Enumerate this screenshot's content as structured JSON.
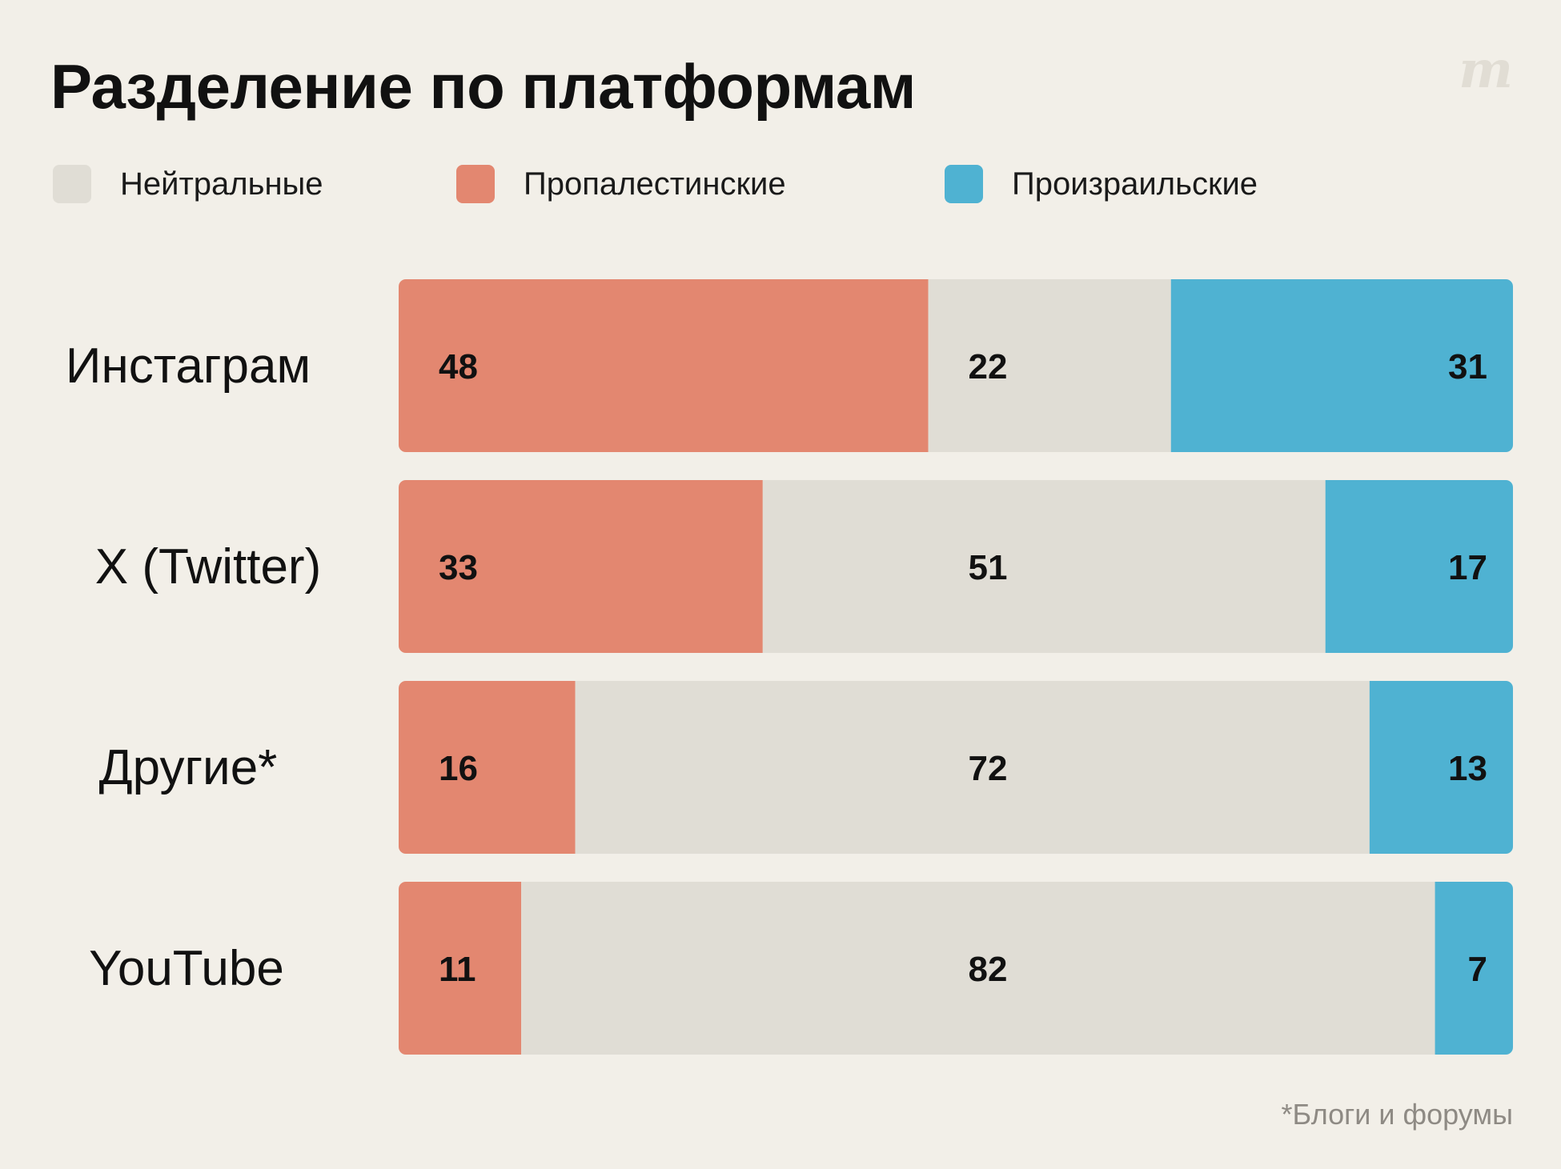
{
  "title": "Разделение по платформам",
  "logo_text": "m",
  "legend": [
    {
      "label": "Нейтральные",
      "color": "#e0ddd5"
    },
    {
      "label": "Пропалестинские",
      "color": "#e38770"
    },
    {
      "label": "Произраильские",
      "color": "#4fb2d2"
    }
  ],
  "footnote": "*Блоги и форумы",
  "chart_data": {
    "type": "bar",
    "orientation": "horizontal",
    "stacked": true,
    "title": "Разделение по платформам",
    "categories": [
      "Инстаграм",
      "X (Twitter)",
      "Другие*",
      "YouTube"
    ],
    "series": [
      {
        "name": "Пропалестинские",
        "color": "#e38770",
        "values": [
          48,
          33,
          16,
          11
        ]
      },
      {
        "name": "Нейтральные",
        "color": "#e0ddd5",
        "values": [
          22,
          51,
          72,
          82
        ]
      },
      {
        "name": "Произраильские",
        "color": "#4fb2d2",
        "values": [
          31,
          17,
          13,
          7
        ]
      }
    ],
    "legend_position": "top-left",
    "grid": false
  }
}
